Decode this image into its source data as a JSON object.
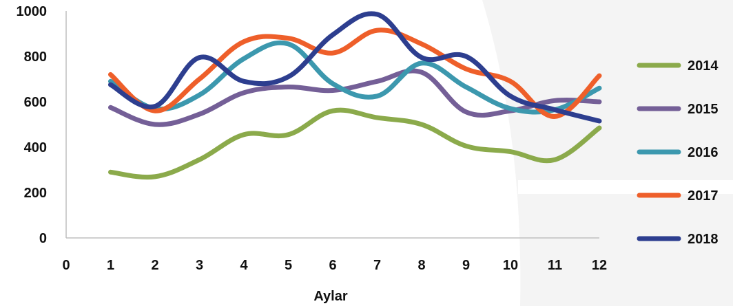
{
  "chart_data": {
    "type": "line",
    "x": [
      1,
      2,
      3,
      4,
      5,
      6,
      7,
      8,
      9,
      10,
      11,
      12
    ],
    "x_ticks": [
      "0",
      "1",
      "2",
      "3",
      "4",
      "5",
      "6",
      "7",
      "8",
      "9",
      "10",
      "11",
      "12"
    ],
    "xlim": [
      0,
      12
    ],
    "y_ticks": [
      "0",
      "200",
      "400",
      "600",
      "800",
      "1000"
    ],
    "ylim": [
      0,
      1000
    ],
    "xlabel": "Aylar",
    "ylabel": "",
    "title": "",
    "grid": false,
    "legend_position": "right",
    "series": [
      {
        "name": "2014",
        "color": "#8BAA4B",
        "values": [
          290,
          270,
          345,
          455,
          455,
          560,
          530,
          500,
          405,
          380,
          345,
          485
        ]
      },
      {
        "name": "2015",
        "color": "#745F97",
        "values": [
          575,
          500,
          545,
          640,
          665,
          650,
          690,
          730,
          555,
          560,
          605,
          600
        ]
      },
      {
        "name": "2016",
        "color": "#3C98AE",
        "values": [
          690,
          570,
          630,
          790,
          855,
          680,
          625,
          770,
          665,
          570,
          565,
          660
        ]
      },
      {
        "name": "2017",
        "color": "#EE5F2A",
        "values": [
          720,
          560,
          700,
          865,
          880,
          815,
          915,
          855,
          745,
          690,
          535,
          715
        ]
      },
      {
        "name": "2018",
        "color": "#2D3E8F",
        "values": [
          675,
          580,
          795,
          690,
          710,
          895,
          985,
          795,
          800,
          625,
          565,
          515
        ]
      }
    ]
  }
}
